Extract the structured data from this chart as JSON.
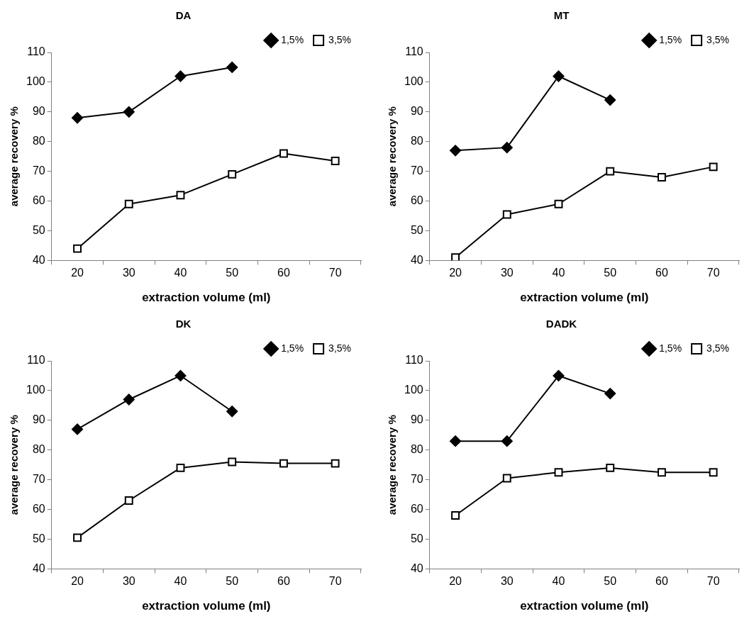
{
  "chart_data": [
    {
      "type": "line",
      "title": "DA",
      "xlabel": "extraction volume (ml)",
      "ylabel": "average recovery %",
      "categories": [
        "20",
        "30",
        "40",
        "50",
        "60",
        "70"
      ],
      "ylim": [
        40,
        110
      ],
      "yticks": [
        40,
        50,
        60,
        70,
        80,
        90,
        100,
        110
      ],
      "grid": false,
      "legend": "top right",
      "series": [
        {
          "name": "1,5%",
          "color": "#000000",
          "marker": "diamond",
          "values": [
            88,
            90,
            102,
            105,
            null,
            null
          ]
        },
        {
          "name": "3,5%",
          "color": "#000000",
          "marker": "square",
          "values": [
            44,
            59,
            62,
            69,
            76,
            73.5
          ]
        }
      ]
    },
    {
      "type": "line",
      "title": "MT",
      "xlabel": "extraction volume (ml)",
      "ylabel": "average recovery %",
      "categories": [
        "20",
        "30",
        "40",
        "50",
        "60",
        "70"
      ],
      "ylim": [
        40,
        110
      ],
      "yticks": [
        40,
        50,
        60,
        70,
        80,
        90,
        100,
        110
      ],
      "grid": false,
      "legend": "top right",
      "series": [
        {
          "name": "1,5%",
          "color": "#000000",
          "marker": "diamond",
          "values": [
            77,
            78,
            102,
            94,
            null,
            null
          ]
        },
        {
          "name": "3,5%",
          "color": "#000000",
          "marker": "square",
          "values": [
            41,
            55.5,
            59,
            70,
            68,
            71.5
          ]
        }
      ]
    },
    {
      "type": "line",
      "title": "DK",
      "xlabel": "extraction volume (ml)",
      "ylabel": "average recovery %",
      "categories": [
        "20",
        "30",
        "40",
        "50",
        "60",
        "70"
      ],
      "ylim": [
        40,
        110
      ],
      "yticks": [
        40,
        50,
        60,
        70,
        80,
        90,
        100,
        110
      ],
      "grid": false,
      "legend": "top right",
      "series": [
        {
          "name": "1,5%",
          "color": "#000000",
          "marker": "diamond",
          "values": [
            87,
            97,
            105,
            93,
            null,
            null
          ]
        },
        {
          "name": "3,5%",
          "color": "#000000",
          "marker": "square",
          "values": [
            50.5,
            63,
            74,
            76,
            75.5,
            75.5
          ]
        }
      ]
    },
    {
      "type": "line",
      "title": "DADK",
      "xlabel": "extraction volume (ml)",
      "ylabel": "average recovery %",
      "categories": [
        "20",
        "30",
        "40",
        "50",
        "60",
        "70"
      ],
      "ylim": [
        40,
        110
      ],
      "yticks": [
        40,
        50,
        60,
        70,
        80,
        90,
        100,
        110
      ],
      "grid": false,
      "legend": "top right",
      "series": [
        {
          "name": "1,5%",
          "color": "#000000",
          "marker": "diamond",
          "values": [
            83,
            83,
            105,
            99,
            null,
            null
          ]
        },
        {
          "name": "3,5%",
          "color": "#000000",
          "marker": "square",
          "values": [
            58,
            70.5,
            72.5,
            74,
            72.5,
            72.5
          ]
        }
      ]
    }
  ]
}
